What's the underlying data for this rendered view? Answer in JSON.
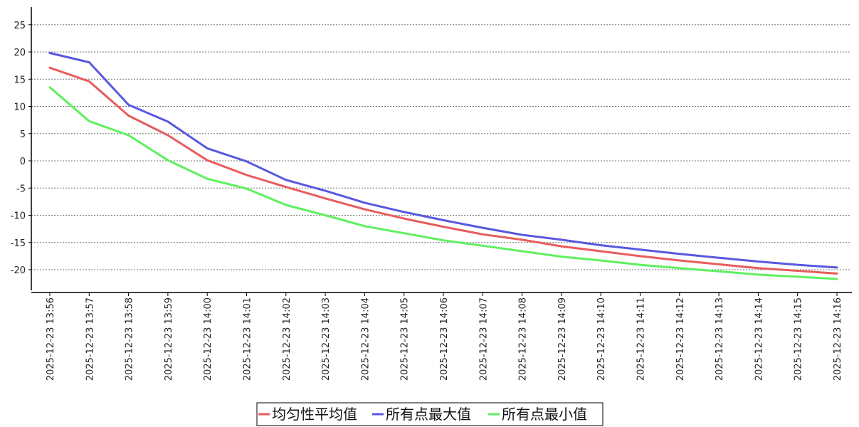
{
  "chart_data": {
    "type": "line",
    "title": "",
    "xlabel": "",
    "ylabel": "",
    "ylim": [
      -24,
      29
    ],
    "yticks": [
      25,
      20,
      15,
      10,
      5,
      0,
      -5,
      -10,
      -15,
      -20
    ],
    "grid": "horizontal dotted",
    "legend_position": "bottom-center",
    "x": [
      "2025-12-23 13:56",
      "2025-12-23 13:57",
      "2025-12-23 13:58",
      "2025-12-23 13:59",
      "2025-12-23 14:00",
      "2025-12-23 14:01",
      "2025-12-23 14:02",
      "2025-12-23 14:03",
      "2025-12-23 14:04",
      "2025-12-23 14:05",
      "2025-12-23 14:06",
      "2025-12-23 14:07",
      "2025-12-23 14:08",
      "2025-12-23 14:09",
      "2025-12-23 14:10",
      "2025-12-23 14:11",
      "2025-12-23 14:12",
      "2025-12-23 14:13",
      "2025-12-23 14:14",
      "2025-12-23 14:15",
      "2025-12-23 14:16"
    ],
    "series": [
      {
        "name": "均匀性平均值",
        "color": "#e85c5c",
        "values": [
          17.1,
          14.6,
          8.3,
          4.7,
          0.1,
          -2.6,
          -4.8,
          -6.9,
          -8.9,
          -10.6,
          -12.1,
          -13.5,
          -14.5,
          -15.7,
          -16.6,
          -17.5,
          -18.3,
          -19.0,
          -19.7,
          -20.2,
          -20.7
        ]
      },
      {
        "name": "所有点最大值",
        "color": "#5858e0",
        "values": [
          19.8,
          18.1,
          10.3,
          7.2,
          2.3,
          -0.1,
          -3.5,
          -5.5,
          -7.7,
          -9.4,
          -10.9,
          -12.3,
          -13.6,
          -14.5,
          -15.5,
          -16.3,
          -17.1,
          -17.8,
          -18.5,
          -19.1,
          -19.6
        ]
      },
      {
        "name": "所有点最小值",
        "color": "#5ef05e",
        "values": [
          13.5,
          7.3,
          4.7,
          0.1,
          -3.3,
          -5.1,
          -8.1,
          -10.0,
          -12.0,
          -13.3,
          -14.6,
          -15.6,
          -16.6,
          -17.6,
          -18.3,
          -19.1,
          -19.7,
          -20.3,
          -20.9,
          -21.3,
          -21.7
        ]
      }
    ]
  }
}
